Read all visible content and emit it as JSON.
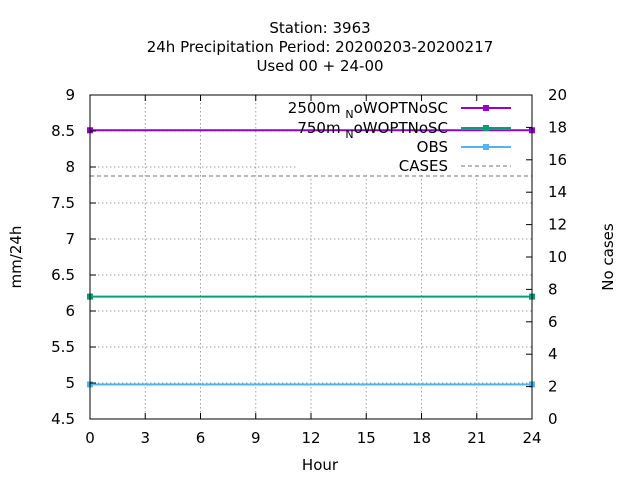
{
  "chart_data": {
    "type": "line",
    "title_lines": [
      "Station:      3963",
      "24h Precipitation    Period: 20200203-20200217",
      "Used  00  + 24-00"
    ],
    "xlabel": "Hour",
    "ylabel": "mm/24h",
    "y2label": "No cases",
    "xlim": [
      0,
      24
    ],
    "ylim": [
      4.5,
      9
    ],
    "y2lim": [
      0,
      20
    ],
    "x_ticks": [
      "0",
      "3",
      "6",
      "9",
      "12",
      "15",
      "18",
      "21",
      "24"
    ],
    "y_ticks": [
      "4.5",
      "5",
      "5.5",
      "6",
      "6.5",
      "7",
      "7.5",
      "8",
      "8.5",
      "9"
    ],
    "y2_ticks": [
      "0",
      "2",
      "4",
      "6",
      "8",
      "10",
      "12",
      "14",
      "16",
      "18",
      "20"
    ],
    "grid": true,
    "legend_position": "top-right",
    "series": [
      {
        "name": "2500m",
        "name_sub": "N",
        "name_rest": "oWOPTNoSC",
        "axis": "y",
        "color": "#9400d3",
        "marker": "square",
        "x": [
          0,
          24
        ],
        "y": [
          8.51,
          8.51
        ]
      },
      {
        "name": "750m",
        "name_sub": "N",
        "name_rest": "oWOPTNoSC",
        "axis": "y",
        "color": "#009e73",
        "marker": "square",
        "x": [
          0,
          24
        ],
        "y": [
          6.2,
          6.2
        ]
      },
      {
        "name": "OBS",
        "axis": "y",
        "color": "#56b4e9",
        "marker": "square",
        "x": [
          0,
          24
        ],
        "y": [
          4.98,
          4.98
        ]
      },
      {
        "name": "CASES",
        "axis": "y2",
        "color": "#a0a0a0",
        "dashed": true,
        "x": [
          0,
          24
        ],
        "y": [
          15,
          15
        ]
      }
    ]
  }
}
